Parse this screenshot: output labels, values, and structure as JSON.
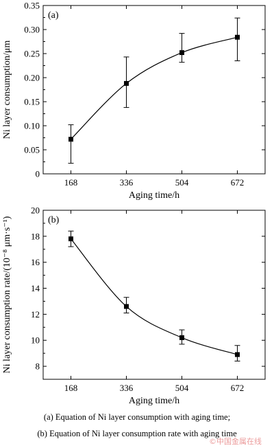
{
  "chart_data": [
    {
      "type": "scatter",
      "panel_label": "(a)",
      "xlabel": "Aging time/h",
      "ylabel": "Ni layer consumption/μm",
      "categories": [
        "168",
        "336",
        "504",
        "672"
      ],
      "x": [
        168,
        336,
        504,
        672
      ],
      "y": [
        0.072,
        0.188,
        0.252,
        0.284
      ],
      "err_low": [
        0.022,
        0.138,
        0.232,
        0.235
      ],
      "err_high": [
        0.102,
        0.243,
        0.292,
        0.324
      ],
      "xlim": [
        84,
        756
      ],
      "ylim": [
        0,
        0.35
      ],
      "yticks": [
        "0",
        "0.05",
        "0.10",
        "0.15",
        "0.20",
        "0.25",
        "0.30",
        "0.35"
      ],
      "fit_curve": true,
      "grid": false
    },
    {
      "type": "scatter",
      "panel_label": "(b)",
      "xlabel": "Aging time/h",
      "ylabel": "Ni layer consumption rate/(10⁻⁸ μm·s⁻¹)",
      "categories": [
        "168",
        "336",
        "504",
        "672"
      ],
      "x": [
        168,
        336,
        504,
        672
      ],
      "y": [
        17.8,
        12.6,
        10.2,
        8.9
      ],
      "err_low": [
        17.2,
        12.1,
        9.7,
        8.4
      ],
      "err_high": [
        18.4,
        13.3,
        10.8,
        9.6
      ],
      "xlim": [
        84,
        756
      ],
      "ylim": [
        7,
        20
      ],
      "yticks": [
        "8",
        "10",
        "12",
        "14",
        "16",
        "18",
        "20"
      ],
      "fit_curve": true,
      "grid": false
    }
  ],
  "captions": {
    "a": "(a) Equation of Ni layer consumption with aging time;",
    "b": "(b) Equation of Ni layer consumption rate with aging time"
  },
  "watermark": "©中国金属在线"
}
